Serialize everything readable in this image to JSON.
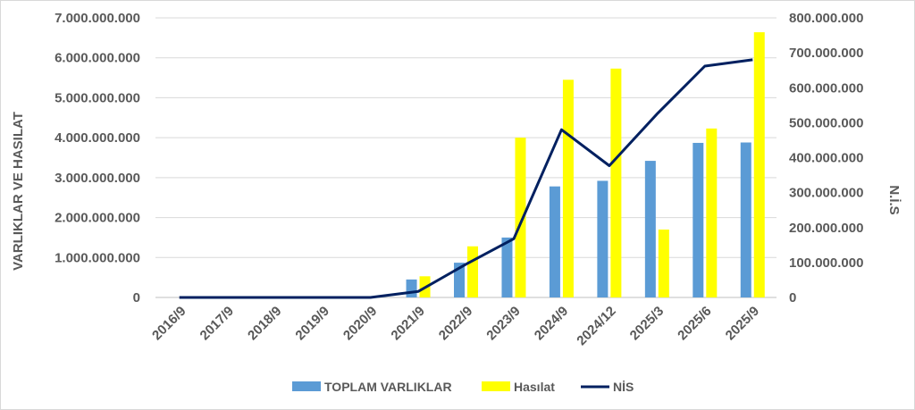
{
  "chart_data": {
    "type": "bar",
    "categories": [
      "2016/9",
      "2017/9",
      "2018/9",
      "2019/9",
      "2020/9",
      "2021/9",
      "2022/9",
      "2023/9",
      "2024/9",
      "2024/12",
      "2025/3",
      "2025/6",
      "2025/9"
    ],
    "series": [
      {
        "name": "TOPLAM VARLIKLAR",
        "type": "bar",
        "axis": "left",
        "color": "#5b9bd5",
        "values": [
          0,
          0,
          0,
          0,
          0,
          450000000,
          870000000,
          1500000000,
          2780000000,
          2920000000,
          3420000000,
          3870000000,
          3880000000
        ]
      },
      {
        "name": "Hasılat",
        "type": "bar",
        "axis": "left",
        "color": "#ffff00",
        "values": [
          0,
          0,
          0,
          0,
          0,
          530000000,
          1280000000,
          4000000000,
          5450000000,
          5730000000,
          1700000000,
          4230000000,
          6640000000
        ]
      },
      {
        "name": "NİS",
        "type": "line",
        "axis": "right",
        "color": "#002060",
        "values": [
          0,
          0,
          0,
          0,
          0,
          17000000,
          95000000,
          168000000,
          480000000,
          377000000,
          525000000,
          662000000,
          680000000
        ]
      }
    ],
    "ylabel": "VARLIKLAR VE HASILAT",
    "y2label": "N.İ.S",
    "ylim": [
      0,
      7000000000
    ],
    "y2lim": [
      0,
      800000000
    ],
    "yticks": [
      "0",
      "1.000.000.000",
      "2.000.000.000",
      "3.000.000.000",
      "4.000.000.000",
      "5.000.000.000",
      "6.000.000.000",
      "7.000.000.000"
    ],
    "y2ticks": [
      "0",
      "100.000.000",
      "200.000.000",
      "300.000.000",
      "400.000.000",
      "500.000.000",
      "600.000.000",
      "700.000.000",
      "800.000.000"
    ],
    "grid": true,
    "legend_position": "bottom"
  }
}
